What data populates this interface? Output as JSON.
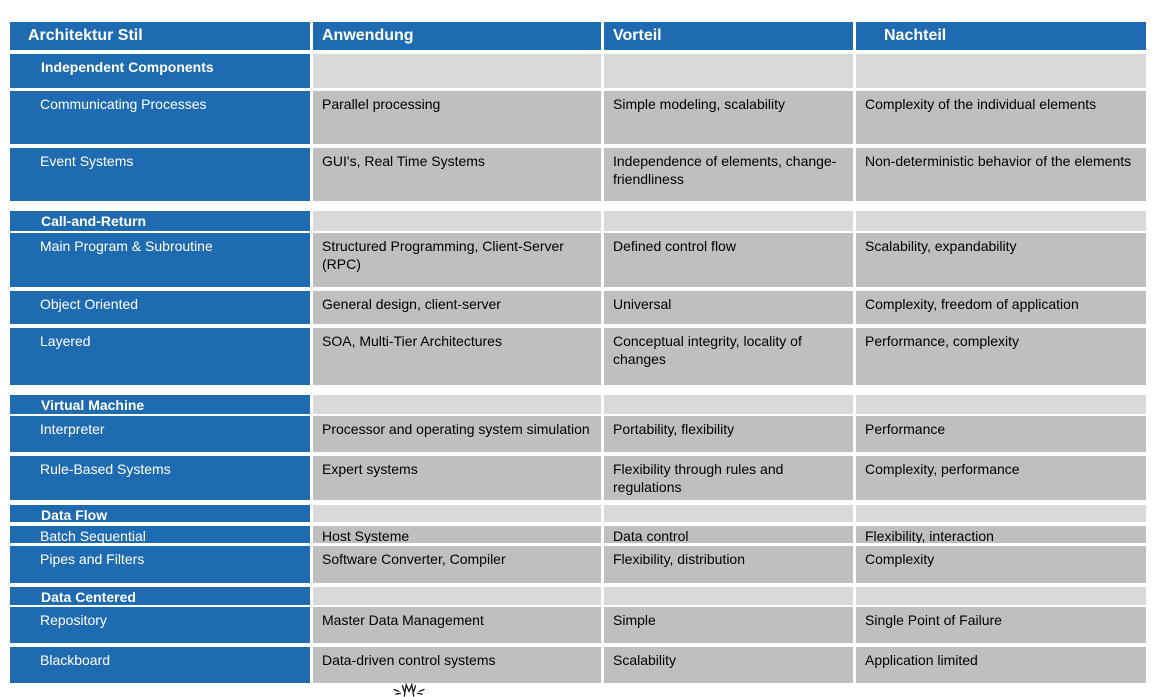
{
  "colors": {
    "accent-blue": "#1F6BB2",
    "cell-gray": "#BFBFBF",
    "category-gray": "#D9D9D9",
    "header-text": "#FFFFFF",
    "body-text": "#000000"
  },
  "table": {
    "headers": [
      "Architektur Stil",
      "Anwendung",
      "Vorteil",
      "Nachteil"
    ],
    "rows": [
      {
        "type": "category",
        "style": "Independent Components",
        "anwendung": "",
        "vorteil": "",
        "nachteil": ""
      },
      {
        "type": "item",
        "style": "Communicating Processes",
        "anwendung": "Parallel processing",
        "vorteil": "Simple modeling, scalability",
        "nachteil": "Complexity of the individual elements"
      },
      {
        "type": "item",
        "style": "Event Systems",
        "anwendung": "GUI's, Real Time Systems",
        "vorteil": "Independence of elements, change-friendliness",
        "nachteil": "Non-deterministic behavior of the elements"
      },
      {
        "type": "category",
        "style": "Call-and-Return",
        "anwendung": "",
        "vorteil": "",
        "nachteil": ""
      },
      {
        "type": "item",
        "style": "Main Program & Subroutine",
        "anwendung": "Structured Programming, Client-Server (RPC)",
        "vorteil": "Defined control flow",
        "nachteil": "Scalability, expandability"
      },
      {
        "type": "item",
        "style": "Object Oriented",
        "anwendung": "General design, client-server",
        "vorteil": "Universal",
        "nachteil": "Complexity, freedom of application"
      },
      {
        "type": "item",
        "style": "Layered",
        "anwendung": "SOA, Multi-Tier Architectures",
        "vorteil": "Conceptual integrity, locality of changes",
        "nachteil": "Performance, complexity"
      },
      {
        "type": "category",
        "style": "Virtual Machine",
        "anwendung": "",
        "vorteil": "",
        "nachteil": ""
      },
      {
        "type": "item",
        "style": "Interpreter",
        "anwendung": "Processor and operating system simulation",
        "vorteil": "Portability, flexibility",
        "nachteil": "Performance"
      },
      {
        "type": "item",
        "style": "Rule-Based Systems",
        "anwendung": "Expert systems",
        "vorteil": "Flexibility through rules and regulations",
        "nachteil": "Complexity, performance"
      },
      {
        "type": "category",
        "style": "Data Flow",
        "anwendung": "",
        "vorteil": "",
        "nachteil": ""
      },
      {
        "type": "item",
        "style": "Batch Sequential",
        "anwendung": "Host Systeme",
        "vorteil": "Data control",
        "nachteil": "Flexibility, interaction"
      },
      {
        "type": "item",
        "style": "Pipes and Filters",
        "anwendung": "Software Converter, Compiler",
        "vorteil": "Flexibility, distribution",
        "nachteil": "Complexity"
      },
      {
        "type": "category",
        "style": "Data Centered",
        "anwendung": "",
        "vorteil": "",
        "nachteil": ""
      },
      {
        "type": "item",
        "style": "Repository",
        "anwendung": "Master Data Management",
        "vorteil": "Simple",
        "nachteil": "Single Point of Failure"
      },
      {
        "type": "item",
        "style": "Blackboard",
        "anwendung": "Data-driven control systems",
        "vorteil": "Scalability",
        "nachteil": "Application limited"
      }
    ]
  },
  "footer": {
    "icon": "sunburst-partial-logo"
  }
}
